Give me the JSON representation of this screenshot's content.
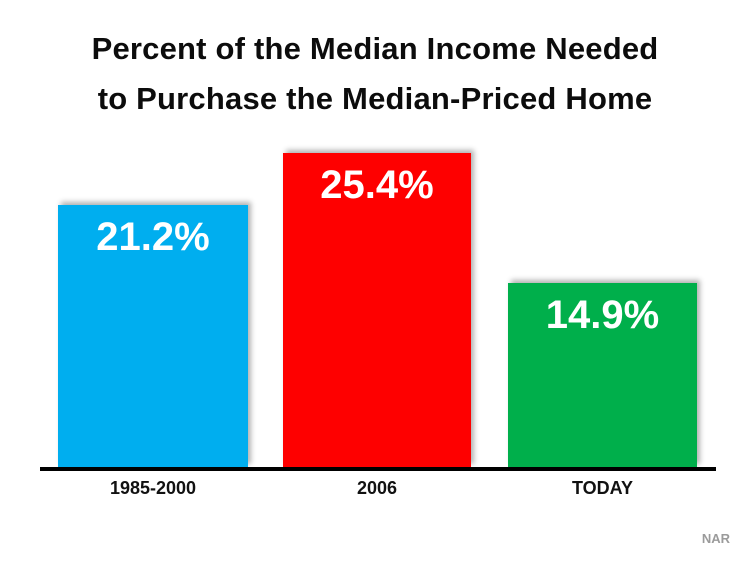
{
  "page": {
    "title_line1": "Percent of the Median Income Needed",
    "title_line2": "to Purchase the Median-Priced Home",
    "source": "NAR"
  },
  "chart_data": {
    "type": "bar",
    "title": "Percent of the Median Income Needed to Purchase the Median-Priced Home",
    "categories": [
      "1985-2000",
      "2006",
      "TODAY"
    ],
    "values": [
      21.2,
      25.4,
      14.9
    ],
    "value_labels": [
      "21.2%",
      "25.4%",
      "14.9%"
    ],
    "bar_colors": [
      "#00AEEF",
      "#FE0000",
      "#00AF4B"
    ],
    "value_label_color": "#FFFFFF",
    "axis_line_color": "#000000",
    "xlabel": "",
    "ylabel": "",
    "ylim": [
      0,
      27
    ],
    "grid": false,
    "legend": false,
    "value_labels_position": "inside-top",
    "source": "NAR"
  }
}
